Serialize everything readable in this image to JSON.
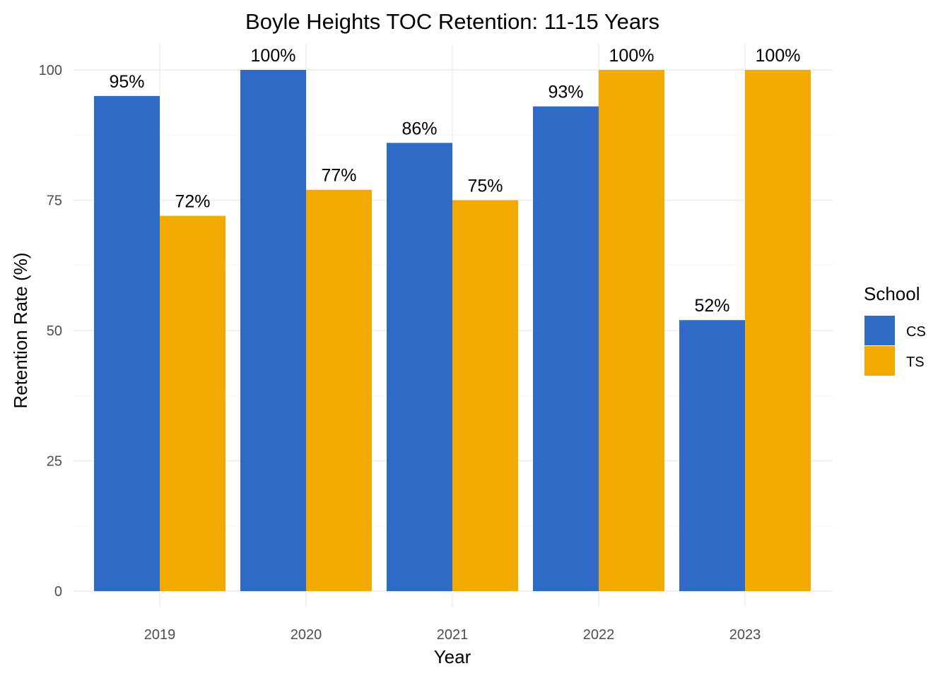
{
  "chart_data": {
    "type": "bar",
    "title": "Boyle Heights TOC Retention: 11-15 Years",
    "xlabel": "Year",
    "ylabel": "Retention Rate (%)",
    "categories": [
      "2019",
      "2020",
      "2021",
      "2022",
      "2023"
    ],
    "series": [
      {
        "name": "CS",
        "color": "#2E6AC6",
        "values": [
          95,
          100,
          86,
          93,
          52
        ],
        "labels": [
          "95%",
          "100%",
          "86%",
          "93%",
          "52%"
        ]
      },
      {
        "name": "TS",
        "color": "#F2AA00",
        "values": [
          72,
          77,
          75,
          100,
          100
        ],
        "labels": [
          "72%",
          "77%",
          "75%",
          "100%",
          "100%"
        ]
      }
    ],
    "ylim": [
      0,
      100
    ],
    "yticks": [
      0,
      25,
      50,
      75,
      100
    ],
    "grid": true,
    "legend": {
      "title": "School",
      "position": "right"
    }
  }
}
